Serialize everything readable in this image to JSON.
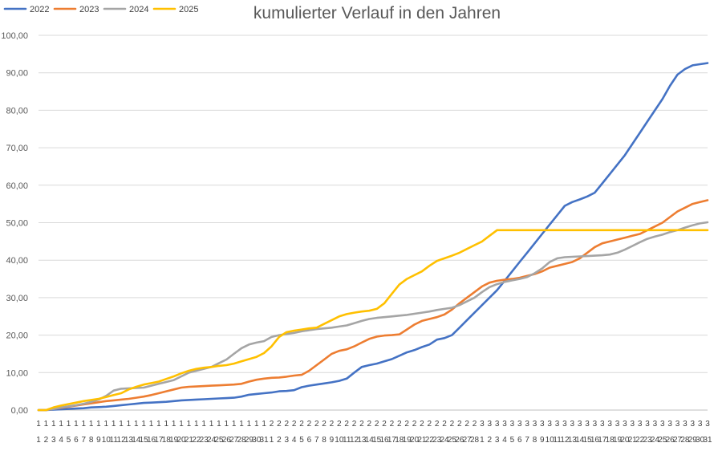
{
  "chart_data": {
    "type": "line",
    "title": "kumulierter Verlauf in den Jahren",
    "xlabel": "",
    "ylabel": "",
    "ylim": [
      0,
      100
    ],
    "yticks": [
      "0,00",
      "10,00",
      "20,00",
      "30,00",
      "40,00",
      "50,00",
      "60,00",
      "70,00",
      "80,00",
      "90,00",
      "100,00"
    ],
    "grid": true,
    "legend_position": "top-left",
    "x_tick_months": [
      "1",
      "1",
      "1",
      "1",
      "1",
      "1",
      "1",
      "1",
      "1",
      "1",
      "1",
      "1",
      "1",
      "1",
      "1",
      "1",
      "1",
      "1",
      "1",
      "1",
      "1",
      "1",
      "1",
      "1",
      "1",
      "1",
      "1",
      "1",
      "1",
      "1",
      "1",
      "2",
      "2",
      "2",
      "2",
      "2",
      "2",
      "2",
      "2",
      "2",
      "2",
      "2",
      "2",
      "2",
      "2",
      "2",
      "2",
      "2",
      "2",
      "2",
      "2",
      "2",
      "2",
      "2",
      "2",
      "2",
      "2",
      "2",
      "2",
      "3",
      "3",
      "3",
      "3",
      "3",
      "3",
      "3",
      "3",
      "3",
      "3",
      "3",
      "3",
      "3",
      "3",
      "3",
      "3",
      "3",
      "3",
      "3",
      "3",
      "3",
      "3",
      "3",
      "3",
      "3",
      "3",
      "3",
      "3",
      "3",
      "3",
      "3"
    ],
    "x_tick_days": [
      "1",
      "2",
      "3",
      "4",
      "5",
      "6",
      "7",
      "8",
      "9",
      "10",
      "11",
      "12",
      "13",
      "14",
      "15",
      "16",
      "17",
      "18",
      "19",
      "20",
      "21",
      "22",
      "23",
      "24",
      "25",
      "26",
      "27",
      "28",
      "29",
      "30",
      "31",
      "1",
      "2",
      "3",
      "4",
      "5",
      "6",
      "7",
      "8",
      "9",
      "10",
      "11",
      "12",
      "13",
      "14",
      "15",
      "16",
      "17",
      "18",
      "19",
      "20",
      "21",
      "22",
      "23",
      "24",
      "25",
      "26",
      "27",
      "28",
      "1",
      "2",
      "3",
      "4",
      "5",
      "6",
      "7",
      "8",
      "9",
      "10",
      "11",
      "12",
      "13",
      "14",
      "15",
      "16",
      "17",
      "18",
      "19",
      "20",
      "21",
      "22",
      "23",
      "24",
      "25",
      "26",
      "27",
      "28",
      "29",
      "30",
      "31"
    ],
    "series": [
      {
        "name": "2022",
        "color": "#4472c4",
        "values": [
          0,
          0,
          0.1,
          0.2,
          0.3,
          0.4,
          0.5,
          0.7,
          0.8,
          0.9,
          1.1,
          1.3,
          1.5,
          1.7,
          1.9,
          2.0,
          2.1,
          2.2,
          2.4,
          2.6,
          2.7,
          2.8,
          2.9,
          3.0,
          3.1,
          3.2,
          3.3,
          3.6,
          4.1,
          4.3,
          4.5,
          4.7,
          5.0,
          5.1,
          5.3,
          6.1,
          6.5,
          6.8,
          7.1,
          7.4,
          7.8,
          8.4,
          10.0,
          11.5,
          12.0,
          12.4,
          13.0,
          13.6,
          14.5,
          15.4,
          16.0,
          16.8,
          17.5,
          18.8,
          19.2,
          20.0,
          22.0,
          24.0,
          26.0,
          28.0,
          30.0,
          32.0,
          34.5,
          37.0,
          39.5,
          42.0,
          44.5,
          47.0,
          49.5,
          52.0,
          54.5,
          55.5,
          56.2,
          57.0,
          58.0,
          60.5,
          63.0,
          65.5,
          68.0,
          71.0,
          74.0,
          77.0,
          80.0,
          83.0,
          86.5,
          89.5,
          91.0,
          92.0,
          92.3,
          92.6
        ]
      },
      {
        "name": "2023",
        "color": "#ed7d31",
        "values": [
          0,
          0,
          0.3,
          0.6,
          0.9,
          1.2,
          1.5,
          1.8,
          2.1,
          2.4,
          2.6,
          2.8,
          3.0,
          3.3,
          3.6,
          4.0,
          4.5,
          5.0,
          5.5,
          6.0,
          6.2,
          6.3,
          6.4,
          6.5,
          6.6,
          6.7,
          6.8,
          7.0,
          7.6,
          8.1,
          8.4,
          8.6,
          8.7,
          8.9,
          9.2,
          9.4,
          10.5,
          12.0,
          13.5,
          15.0,
          15.8,
          16.2,
          17.0,
          18.0,
          19.0,
          19.6,
          19.9,
          20.0,
          20.2,
          21.5,
          22.8,
          23.8,
          24.3,
          24.8,
          25.5,
          26.8,
          28.5,
          30.0,
          31.5,
          33.0,
          34.0,
          34.5,
          34.8,
          35.0,
          35.3,
          35.8,
          36.3,
          37.0,
          38.0,
          38.5,
          39.0,
          39.5,
          40.5,
          42.0,
          43.5,
          44.5,
          45.0,
          45.5,
          46.0,
          46.5,
          47.0,
          48.0,
          49.0,
          50.0,
          51.5,
          53.0,
          54.0,
          55.0,
          55.5,
          56.0
        ]
      },
      {
        "name": "2024",
        "color": "#a5a5a5",
        "values": [
          0,
          0,
          0.3,
          0.7,
          1.0,
          1.3,
          1.7,
          2.2,
          2.8,
          3.8,
          5.2,
          5.7,
          5.8,
          5.9,
          6.0,
          6.5,
          7.0,
          7.5,
          8.0,
          9.0,
          10.0,
          10.5,
          11.0,
          11.5,
          12.5,
          13.5,
          15.0,
          16.5,
          17.5,
          18.0,
          18.4,
          19.5,
          20.0,
          20.3,
          20.6,
          21.0,
          21.3,
          21.6,
          21.8,
          22.0,
          22.3,
          22.6,
          23.2,
          23.8,
          24.3,
          24.6,
          24.8,
          25.0,
          25.2,
          25.4,
          25.7,
          26.0,
          26.3,
          26.7,
          27.0,
          27.3,
          28.0,
          29.0,
          30.0,
          31.5,
          32.8,
          33.6,
          34.2,
          34.6,
          35.0,
          35.5,
          36.5,
          37.8,
          39.5,
          40.5,
          40.8,
          40.9,
          41.0,
          41.1,
          41.2,
          41.3,
          41.5,
          42.0,
          42.8,
          43.8,
          44.8,
          45.7,
          46.3,
          46.8,
          47.5,
          48.0,
          48.7,
          49.3,
          49.8,
          50.1
        ]
      },
      {
        "name": "2025",
        "color": "#ffc000",
        "values": [
          0,
          0,
          0.7,
          1.2,
          1.6,
          2.0,
          2.4,
          2.7,
          3.0,
          3.5,
          4.0,
          4.5,
          5.5,
          6.2,
          6.8,
          7.2,
          7.6,
          8.3,
          9.0,
          9.8,
          10.5,
          11.0,
          11.3,
          11.5,
          11.8,
          12.0,
          12.4,
          13.0,
          13.6,
          14.2,
          15.2,
          17.0,
          19.5,
          20.8,
          21.2,
          21.5,
          21.8,
          22.0,
          23.0,
          24.0,
          25.0,
          25.6,
          26.0,
          26.3,
          26.5,
          27.0,
          28.5,
          31.0,
          33.5,
          35.0,
          36.0,
          37.0,
          38.5,
          39.8,
          40.5,
          41.2,
          42.0,
          43.0,
          44.0,
          45.0,
          46.5,
          48.0,
          48,
          48,
          48,
          48,
          48,
          48,
          48,
          48,
          48,
          48,
          48,
          48,
          48,
          48,
          48,
          48,
          48,
          48,
          48,
          48,
          48,
          48,
          48,
          48,
          48,
          48,
          48,
          48
        ]
      }
    ]
  }
}
